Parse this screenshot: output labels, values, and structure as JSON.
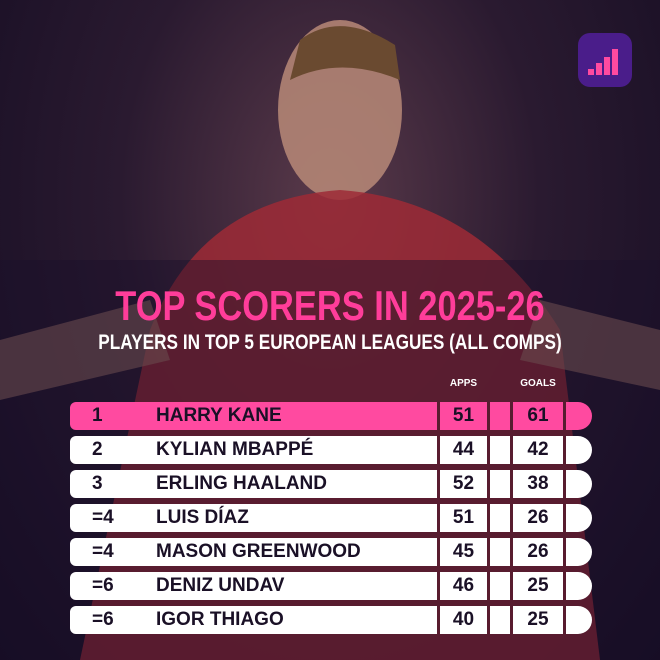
{
  "header": {
    "title": "TOP SCORERS IN 2025-26",
    "subtitle": "PLAYERS IN TOP 5 EUROPEAN LEAGUES (ALL COMPS)"
  },
  "table": {
    "columns": [
      "APPS",
      "GOALS"
    ],
    "rows": [
      [
        "1",
        "HARRY KANE",
        51,
        61
      ],
      [
        "2",
        "KYLIAN MBAPPÉ",
        44,
        42
      ],
      [
        "3",
        "ERLING HAALAND",
        52,
        38
      ],
      [
        "=4",
        "LUIS DÍAZ",
        51,
        26
      ],
      [
        "=4",
        "MASON GREENWOOD",
        45,
        26
      ],
      [
        "=6",
        "DENIZ UNDAV",
        46,
        25
      ],
      [
        "=6",
        "IGOR THIAGO",
        40,
        25
      ]
    ]
  }
}
